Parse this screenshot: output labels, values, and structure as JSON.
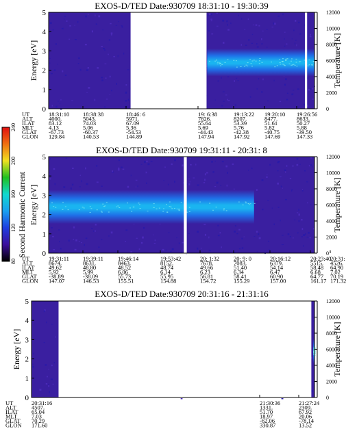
{
  "colors": {
    "background": "#3a1fa0",
    "low": "#2a1aa8",
    "mid": "#1f6fe8",
    "high": "#1ab4f0",
    "peak": "#8ef0f0",
    "mark_white": "#ffffff"
  },
  "colorbar": {
    "label": "Second Harmonic Current",
    "ticks": [
      "80",
      "120",
      "160",
      "200",
      "240"
    ],
    "stops": [
      "#000000",
      "#3b0f9c",
      "#1f3ee0",
      "#1aa0f0",
      "#10d8d0",
      "#20c020",
      "#f0e020",
      "#f07010",
      "#e01010"
    ]
  },
  "chart_data": [
    {
      "type": "heatmap",
      "title": "EXOS-D/TED   Date:930709   18:31:10 - 19:30:39",
      "ylabel": "Energy [eV]",
      "ylabel_right": "Temperature [K]",
      "ylim": [
        0,
        5
      ],
      "ylim_right": [
        0,
        12000
      ],
      "yticks": [
        "0",
        "1",
        "2",
        "3",
        "4",
        "5"
      ],
      "yticks_right": [
        "0",
        "2000",
        "4000",
        "6000",
        "8000",
        "10000",
        "12000"
      ],
      "time_range": [
        "18:31:10",
        "19:30:39"
      ],
      "data_gaps": [
        [
          "18:49:30",
          "19:06:30"
        ],
        [
          "19:28:30",
          "19:29:00"
        ]
      ],
      "intense_band": [
        {
          "from": "19:06:38",
          "to": "19:30:39",
          "energy_center_ev": 2.4,
          "energy_width_ev": 0.9
        }
      ],
      "ephemeris_labels": [
        "UT",
        "ALT",
        "ILAT",
        "MLT",
        "GLAT",
        "GLON"
      ],
      "ephemeris_columns": [
        [
          "18:31:10",
          "4000.",
          "83.12",
          "4.13",
          "-67.73",
          "129.84"
        ],
        [
          "18:38:38",
          "5043.",
          "74.03",
          "5.06",
          "-60.37",
          "140.53"
        ],
        [
          "18:46: 6",
          "5971.",
          "67.09",
          "5.36",
          "-54.53",
          "144.89"
        ],
        [
          "19: 6:38",
          "7826.",
          "55.64",
          "5.69",
          "-44.43",
          "147.94"
        ],
        [
          "19:13:22",
          "8207.",
          "53.39",
          "5.76",
          "-42.38",
          "147.92"
        ],
        [
          "19:20:10",
          "8477.",
          "51.61",
          "5.82",
          "-40.75",
          "147.69"
        ],
        [
          "19:26:56",
          "8633.",
          "50.27",
          "5.88",
          "-39.50",
          "147.33"
        ]
      ]
    },
    {
      "type": "heatmap",
      "title": "EXOS-D/TED   Date:930709   19:31:11 - 20:31: 8",
      "ylabel": "Energy [eV]",
      "ylabel_right": "Temperature [K]",
      "ylim": [
        0,
        5
      ],
      "ylim_right": [
        0,
        12000
      ],
      "yticks": [
        "0",
        "1",
        "2",
        "3",
        "4",
        "5"
      ],
      "yticks_right": [
        "0",
        "2000",
        "4000",
        "6000",
        "8000",
        "10000",
        "12000"
      ],
      "time_range": [
        "19:31:11",
        "20:31: 8"
      ],
      "data_gaps": [
        [
          "20:01:40",
          "20:02:20"
        ]
      ],
      "intense_band": [
        {
          "from": "19:31:11",
          "to": "20:17:30",
          "energy_center_ev": 2.4,
          "energy_width_ev": 1.1
        }
      ],
      "ephemeris_labels": [
        "UT",
        "ALT",
        "ILAT",
        "MLT",
        "GLAT",
        "GLON"
      ],
      "ephemeris_columns": [
        [
          "19:31:11",
          "8674.",
          "49.62",
          "5.92",
          "-38.89",
          "147.07"
        ],
        [
          "19:39:11",
          "8631.",
          "48.80",
          "5.99",
          "-38.09",
          "146.53"
        ],
        [
          "19:46:14",
          "8463.",
          "48.52",
          "6.06",
          "55.73",
          "155.51"
        ],
        [
          "19:53:42",
          "8152.",
          "48.74",
          "6.14",
          "55.95",
          "154.88"
        ],
        [
          "20: 1:32",
          "7678.",
          "49.66",
          "6.23",
          "56.81",
          "154.72"
        ],
        [
          "20: 9: 0",
          "7083.",
          "51.40",
          "6.34",
          "58.41",
          "155.29"
        ],
        [
          "20:16:12",
          "6379.",
          "54.14",
          "6.47",
          "60.90",
          "157.00"
        ],
        [
          "20:23:40",
          "5515.",
          "58.48",
          "6.68",
          "64.77",
          "161.17"
        ],
        [
          "20:31: 8",
          "4526.",
          "64.90",
          "7.02",
          "70.19",
          "171.32"
        ]
      ]
    },
    {
      "type": "heatmap",
      "title": "EXOS-D/TED   Date:930709   20:31:16 - 21:31:16",
      "ylabel": "Energy [eV]",
      "ylabel_right": "Temperature [K]",
      "ylim": [
        0,
        5
      ],
      "ylim_right": [
        0,
        12000
      ],
      "yticks": [
        "0",
        "1",
        "2",
        "3",
        "4",
        "5"
      ],
      "yticks_right": [
        "0",
        "2000",
        "4000",
        "6000",
        "8000",
        "10000",
        "12000"
      ],
      "time_range": [
        "20:31:16",
        "21:31:16"
      ],
      "data_gaps": [
        [
          "20:37:00",
          "21:30:36"
        ]
      ],
      "intense_band": [
        {
          "from": "21:31:00",
          "to": "21:31:16",
          "energy_center_ev": 2.4,
          "energy_width_ev": 0.8
        }
      ],
      "ephemeris_labels": [
        "UT",
        "ALT",
        "ILAT",
        "MLT",
        "GLAT",
        "GLON"
      ],
      "ephemeris_columns": [
        [
          "20:31:16",
          "4507.",
          "65.04",
          "7.03",
          "70.29",
          "171.60"
        ],
        [
          "21:30:36",
          "1331.",
          "51.70",
          "18.97",
          "-62.06",
          "330.87"
        ],
        [
          "21:27:24",
          "2309.",
          "67.92",
          "20.06",
          "-78.14",
          "13.52"
        ]
      ]
    }
  ]
}
